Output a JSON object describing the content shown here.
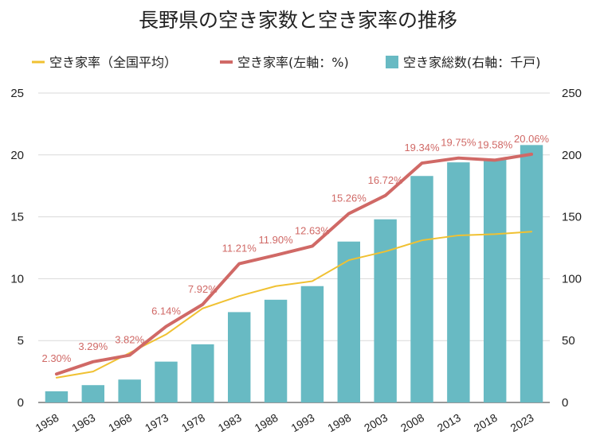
{
  "chart_data": {
    "type": "bar",
    "title": "長野県の空き家数と空き家率の推移",
    "categories": [
      "1958",
      "1963",
      "1968",
      "1973",
      "1978",
      "1983",
      "1988",
      "1993",
      "1998",
      "2003",
      "2008",
      "2013",
      "2018",
      "2023"
    ],
    "series": [
      {
        "name": "空き家率（全国平均）",
        "kind": "line",
        "axis": "left",
        "color": "#f0c132",
        "values": [
          2.0,
          2.5,
          4.0,
          5.5,
          7.6,
          8.6,
          9.4,
          9.8,
          11.5,
          12.2,
          13.1,
          13.5,
          13.6,
          13.8
        ]
      },
      {
        "name": "空き家率(左軸：%)",
        "kind": "line",
        "axis": "left",
        "color": "#d06966",
        "values": [
          2.3,
          3.29,
          3.82,
          6.14,
          7.92,
          11.21,
          11.9,
          12.63,
          15.26,
          16.72,
          19.34,
          19.75,
          19.58,
          20.06
        ],
        "data_labels": [
          "2.30%",
          "3.29%",
          "3.82%",
          "6.14%",
          "7.92%",
          "11.21%",
          "11.90%",
          "12.63%",
          "15.26%",
          "16.72%",
          "19.34%",
          "19.75%",
          "19.58%",
          "20.06%"
        ]
      },
      {
        "name": "空き家総数(右軸：千戸)",
        "kind": "bar",
        "axis": "right",
        "color": "#68bac3",
        "values": [
          9,
          14,
          18.5,
          33,
          47,
          73,
          83,
          94,
          130,
          148,
          183,
          194,
          197,
          208
        ]
      }
    ],
    "left_axis": {
      "ylim": [
        0,
        25
      ],
      "ticks": [
        "0",
        "5",
        "10",
        "15",
        "20",
        "25"
      ]
    },
    "right_axis": {
      "ylim": [
        0,
        250
      ],
      "ticks": [
        "0",
        "50",
        "100",
        "150",
        "200",
        "250"
      ]
    },
    "grid": true,
    "legend_position": "top"
  }
}
